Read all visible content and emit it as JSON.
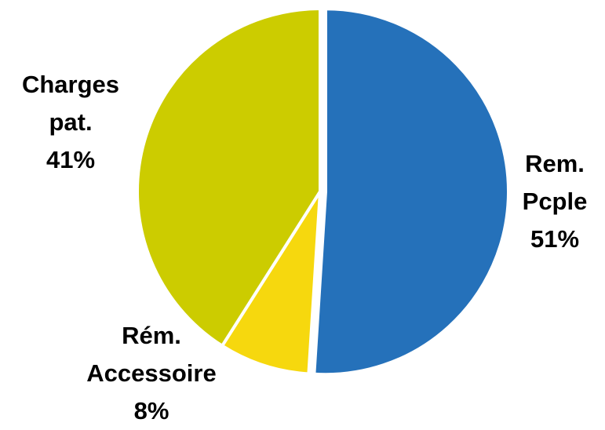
{
  "chart_data": {
    "type": "pie",
    "slices": [
      {
        "label_lines": [
          "Rem.",
          "Pcple"
        ],
        "percent_text": "51%",
        "value": 51,
        "color": "#2571BA"
      },
      {
        "label_lines": [
          "Rém.",
          "Accessoire"
        ],
        "percent_text": "8%",
        "value": 8,
        "color": "#F6D80E"
      },
      {
        "label_lines": [
          "Charges",
          "pat."
        ],
        "percent_text": "41%",
        "value": 41,
        "color": "#CCCC00"
      }
    ],
    "title": "",
    "start_angle": "12 o'clock",
    "direction": "clockwise",
    "slice_separator_color": "#FFFFFF",
    "legend": "none"
  }
}
